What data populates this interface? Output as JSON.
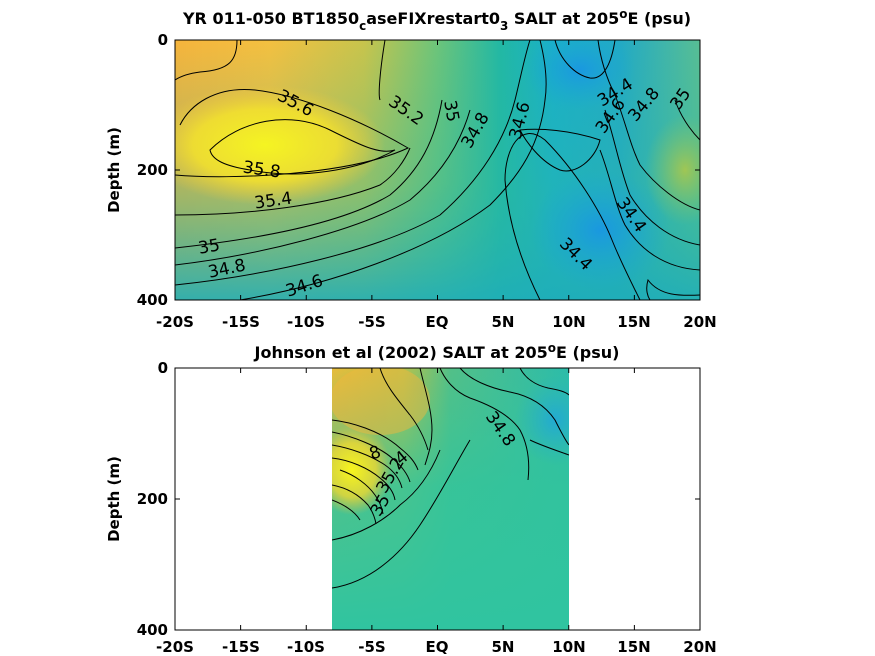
{
  "chart_data": [
    {
      "type": "heatmap",
      "title": "YR 011-050 BT1850_caseFIXrestart0_3 SALT at 205°E (psu)",
      "title_parts": [
        "YR 011-050 BT1850",
        "c",
        "aseFIXrestart0",
        "3",
        " SALT at 205",
        "o",
        "E (psu)"
      ],
      "ylabel": "Depth (m)",
      "xlim": [
        -20,
        20
      ],
      "ylim": [
        0,
        400
      ],
      "x_ticks": [
        "-20S",
        "-15S",
        "-10S",
        "-5S",
        "EQ",
        "5N",
        "10N",
        "15N",
        "20N"
      ],
      "y_ticks": [
        "0",
        "200",
        "400"
      ],
      "colormap": "parula",
      "contour_labels": [
        {
          "text": "35.6",
          "x": -12,
          "y": 95
        },
        {
          "text": "35.8",
          "x": -13,
          "y": 200
        },
        {
          "text": "35.2",
          "x": -5,
          "y": 108
        },
        {
          "text": "35",
          "x": -3,
          "y": 110
        },
        {
          "text": "35.4",
          "x": -12,
          "y": 245
        },
        {
          "text": "35",
          "x": -16,
          "y": 318
        },
        {
          "text": "34.8",
          "x": -17.5,
          "y": 355
        },
        {
          "text": "34.6",
          "x": -10,
          "y": 375
        },
        {
          "text": "34.8",
          "x": 3,
          "y": 135
        },
        {
          "text": "34.6",
          "x": 6.5,
          "y": 125
        },
        {
          "text": "34.4",
          "x": 16,
          "y": 92
        },
        {
          "text": "34.6",
          "x": 15.5,
          "y": 118
        },
        {
          "text": "34.8",
          "x": 17,
          "y": 105
        },
        {
          "text": "35",
          "x": 19,
          "y": 95
        },
        {
          "text": "34.4",
          "x": 16,
          "y": 270
        },
        {
          "text": "34.4",
          "x": 10.5,
          "y": 340
        }
      ]
    },
    {
      "type": "heatmap",
      "title": "Johnson et al (2002) SALT at 205°E (psu)",
      "title_parts": [
        "Johnson et al (2002) SALT at 205",
        "o",
        "E (psu)"
      ],
      "ylabel": "Depth (m)",
      "xlim": [
        -20,
        20
      ],
      "ylim": [
        0,
        400
      ],
      "data_extent_x": [
        -8,
        10
      ],
      "x_ticks": [
        "-20S",
        "-15S",
        "-10S",
        "-5S",
        "EQ",
        "5N",
        "10N",
        "15N",
        "20N"
      ],
      "y_ticks": [
        "0",
        "200",
        "400"
      ],
      "colormap": "parula",
      "contour_labels": [
        {
          "text": "34.8",
          "x": 4.5,
          "y": 105
        },
        {
          "text": "35",
          "x": -4,
          "y": 215
        },
        {
          "text": "35.2",
          "x": -2,
          "y": 170
        },
        {
          "text": "8",
          "x": -5,
          "y": 145
        },
        {
          "text": "4",
          "x": -2,
          "y": 150
        }
      ]
    }
  ]
}
